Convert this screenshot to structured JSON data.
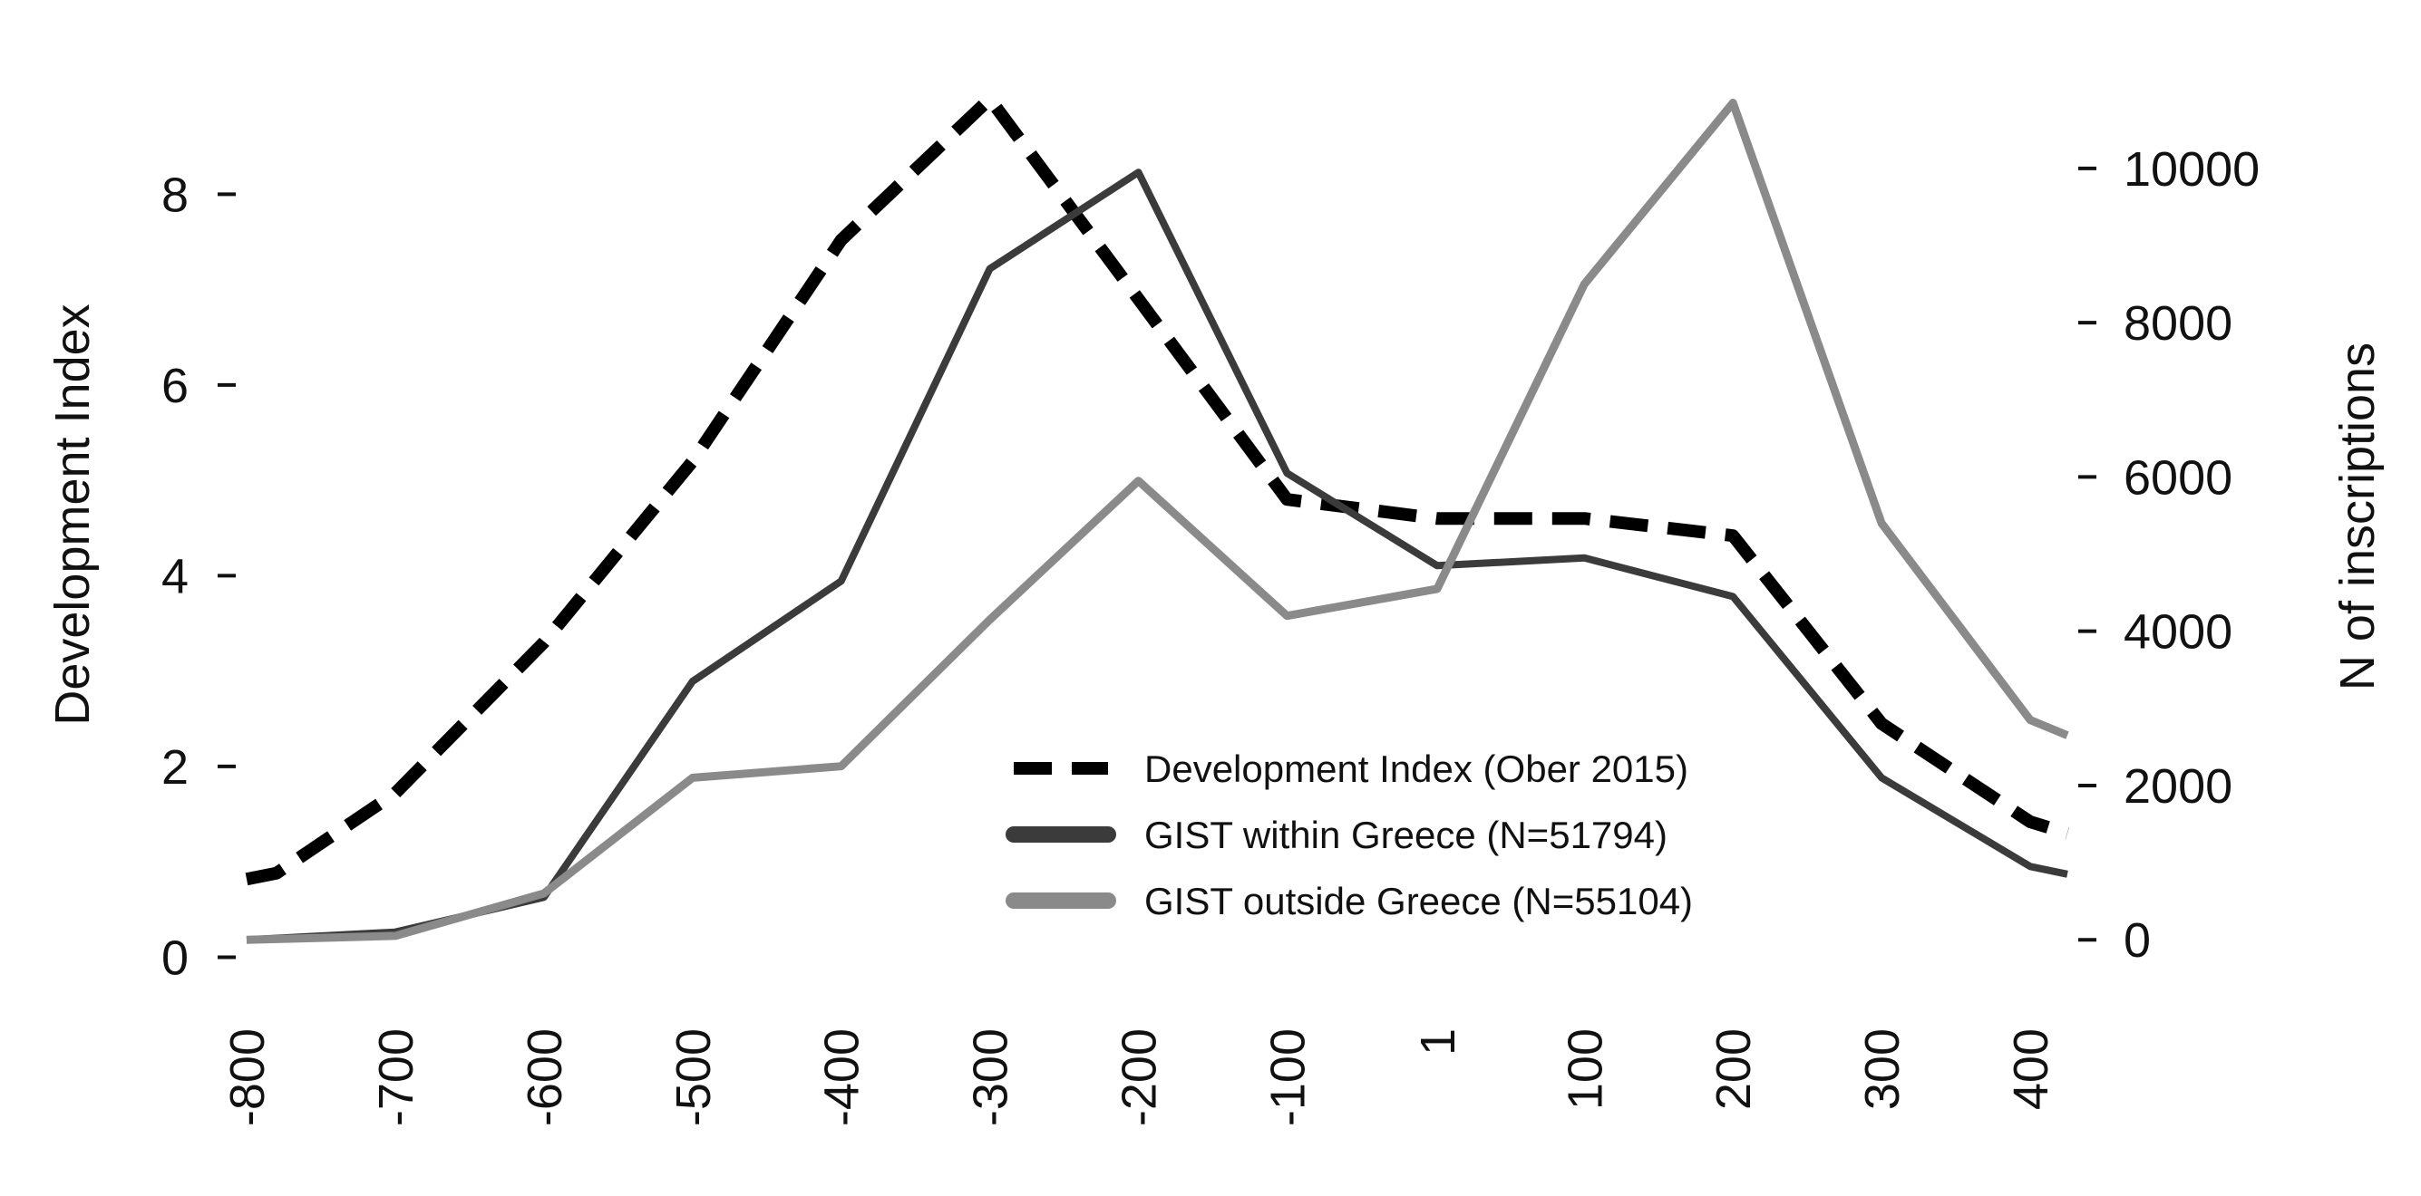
{
  "chart_data": {
    "type": "line",
    "title": "",
    "xlabel": "",
    "ylabel": "Development Index",
    "y2label": "N of inscriptions",
    "x": [
      -800,
      -700,
      -600,
      -500,
      -400,
      -300,
      -200,
      -100,
      1,
      100,
      200,
      300,
      400
    ],
    "xtick_labels": [
      "-800",
      "-700",
      "-600",
      "-500",
      "-400",
      "-300",
      "-200",
      "-100",
      "1",
      "100",
      "200",
      "300",
      "400"
    ],
    "xlim": [
      -800,
      425
    ],
    "ylim": [
      -0.1,
      9.2
    ],
    "yticks": [
      0,
      2,
      4,
      6,
      8
    ],
    "ytick_labels": [
      "0",
      "2",
      "4",
      "6",
      "8"
    ],
    "y2lim": [
      -350,
      11150
    ],
    "y2ticks": [
      0,
      2000,
      4000,
      6000,
      8000,
      10000
    ],
    "y2tick_labels": [
      "0",
      "2000",
      "4000",
      "6000",
      "8000",
      "10000"
    ],
    "grid": false,
    "legend_position": "lower-center",
    "series": [
      {
        "name": "Development Index (Ober 2015)",
        "axis": "left",
        "style": "dashed",
        "color": "#000000",
        "x": [
          -800,
          -780,
          -700,
          -600,
          -500,
          -400,
          -300,
          -200,
          -100,
          1,
          100,
          200,
          300,
          400,
          425
        ],
        "values": [
          0.82,
          0.88,
          1.72,
          3.3,
          5.2,
          7.52,
          9.0,
          6.9,
          4.8,
          4.6,
          4.6,
          4.42,
          2.45,
          1.42,
          1.3
        ]
      },
      {
        "name": "GIST within Greece (N=51794)",
        "axis": "right",
        "style": "solid",
        "color": "#3b3b3b",
        "x": [
          -800,
          -700,
          -600,
          -500,
          -400,
          -300,
          -200,
          -100,
          1,
          100,
          200,
          300,
          400,
          425
        ],
        "values": [
          0,
          100,
          550,
          3350,
          4650,
          8700,
          9950,
          6050,
          4850,
          4950,
          4450,
          2100,
          950,
          850
        ]
      },
      {
        "name": "GIST outside Greece (N=55104)",
        "axis": "right",
        "style": "solid",
        "color": "#8a8a8a",
        "x": [
          -800,
          -700,
          -600,
          -500,
          -400,
          -300,
          -200,
          -100,
          1,
          100,
          200,
          300,
          400,
          425
        ],
        "values": [
          0,
          50,
          600,
          2100,
          2250,
          4150,
          5950,
          4200,
          4550,
          8500,
          10850,
          5400,
          2850,
          2650
        ]
      }
    ]
  }
}
